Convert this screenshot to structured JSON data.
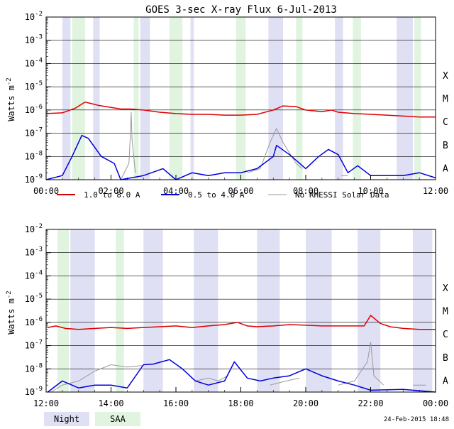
{
  "colors": {
    "night": "#e0e0f4",
    "saa": "#e0f4e0",
    "long_channel": "#dd0000",
    "short_channel": "#0000dd",
    "no_rhessi": "#999999",
    "grid": "#000000"
  },
  "chart_data": [
    {
      "type": "line",
      "title": "GOES 3-sec X-ray Flux    6-Jul-2013",
      "ylabel": "Watts m",
      "ylabel_sup": "-2",
      "yscale": "log",
      "ylim": [
        1e-09,
        0.01
      ],
      "xlim_hours": [
        0,
        12
      ],
      "x_ticks": [
        {
          "t": 0,
          "label": "00:00"
        },
        {
          "t": 2,
          "label": "02:00"
        },
        {
          "t": 4,
          "label": "04:00"
        },
        {
          "t": 6,
          "label": "06:00"
        },
        {
          "t": 8,
          "label": "08:00"
        },
        {
          "t": 10,
          "label": "10:00"
        },
        {
          "t": 12,
          "label": "12:00"
        }
      ],
      "y_ticks": [
        {
          "exp": -2,
          "label": "10"
        },
        {
          "exp": -3,
          "label": "10"
        },
        {
          "exp": -4,
          "label": "10"
        },
        {
          "exp": -5,
          "label": "10"
        },
        {
          "exp": -6,
          "label": "10"
        },
        {
          "exp": -7,
          "label": "10"
        },
        {
          "exp": -8,
          "label": "10"
        },
        {
          "exp": -9,
          "label": "10"
        }
      ],
      "y_tick_sups": [
        "-2",
        "-3",
        "-4",
        "-5",
        "-6",
        "-7",
        "-8",
        "-9"
      ],
      "flare_classes": [
        {
          "exp": -4,
          "label": "X"
        },
        {
          "exp": -5,
          "label": "M"
        },
        {
          "exp": -6,
          "label": "C"
        },
        {
          "exp": -7,
          "label": "B"
        },
        {
          "exp": -8,
          "label": "A"
        }
      ],
      "night": [
        [
          0.5,
          0.75
        ],
        [
          1.45,
          1.65
        ],
        [
          2.9,
          3.2
        ],
        [
          4.45,
          4.55
        ],
        [
          6.85,
          7.3
        ],
        [
          8.9,
          9.15
        ],
        [
          10.8,
          11.3
        ]
      ],
      "saa": [
        [
          0.8,
          1.2
        ],
        [
          2.7,
          2.85
        ],
        [
          3.8,
          4.2
        ],
        [
          5.85,
          6.15
        ],
        [
          7.7,
          7.9
        ],
        [
          9.45,
          9.7
        ],
        [
          11.35,
          11.55
        ]
      ],
      "series": [
        {
          "name": "1.0 to 8.0 A",
          "points": [
            [
              0,
              7e-07
            ],
            [
              0.5,
              7.5e-07
            ],
            [
              0.9,
              1.2e-06
            ],
            [
              1.2,
              2.2e-06
            ],
            [
              1.6,
              1.6e-06
            ],
            [
              2.3,
              1.1e-06
            ],
            [
              2.6,
              1.1e-06
            ],
            [
              3,
              1e-06
            ],
            [
              3.5,
              8e-07
            ],
            [
              4,
              7e-07
            ],
            [
              4.5,
              6.5e-07
            ],
            [
              5,
              6.5e-07
            ],
            [
              5.5,
              6e-07
            ],
            [
              6,
              6e-07
            ],
            [
              6.5,
              6.5e-07
            ],
            [
              7,
              1e-06
            ],
            [
              7.3,
              1.5e-06
            ],
            [
              7.7,
              1.4e-06
            ],
            [
              8,
              1e-06
            ],
            [
              8.5,
              8.5e-07
            ],
            [
              8.8,
              1e-06
            ],
            [
              9,
              8e-07
            ],
            [
              9.5,
              7e-07
            ],
            [
              10,
              6.5e-07
            ],
            [
              10.5,
              6e-07
            ],
            [
              11,
              5.5e-07
            ],
            [
              11.5,
              5e-07
            ],
            [
              12,
              5e-07
            ]
          ]
        },
        {
          "name": "0.5 to 4.0 A",
          "points": [
            [
              0,
              1e-09
            ],
            [
              0.5,
              1.5e-09
            ],
            [
              0.8,
              1e-08
            ],
            [
              1.1,
              8e-08
            ],
            [
              1.3,
              6e-08
            ],
            [
              1.7,
              1e-08
            ],
            [
              2.1,
              5e-09
            ],
            [
              2.3,
              1e-09
            ],
            [
              3,
              1.5e-09
            ],
            [
              3.6,
              3e-09
            ],
            [
              4,
              1e-09
            ],
            [
              4.5,
              2e-09
            ],
            [
              5,
              1.5e-09
            ],
            [
              5.5,
              2e-09
            ],
            [
              6,
              2e-09
            ],
            [
              6.5,
              3e-09
            ],
            [
              7,
              1e-08
            ],
            [
              7.1,
              3e-08
            ],
            [
              7.5,
              1.2e-08
            ],
            [
              8,
              3e-09
            ],
            [
              8.4,
              1e-08
            ],
            [
              8.7,
              2e-08
            ],
            [
              9,
              1.2e-08
            ],
            [
              9.3,
              2e-09
            ],
            [
              9.6,
              4e-09
            ],
            [
              10,
              1.5e-09
            ],
            [
              11,
              1.5e-09
            ],
            [
              11.5,
              2e-09
            ],
            [
              12,
              1.2e-09
            ]
          ]
        }
      ],
      "no_rhessi_segments": [
        [
          [
            2.3,
            1e-09
          ],
          [
            2.55,
            5e-09
          ],
          [
            2.6,
            1e-07
          ],
          [
            2.62,
            8e-07
          ],
          [
            2.65,
            5e-08
          ],
          [
            2.75,
            2e-09
          ]
        ],
        [
          [
            6.2,
            2e-09
          ],
          [
            6.6,
            3e-09
          ],
          [
            6.9,
            4e-08
          ],
          [
            7.1,
            1.6e-07
          ],
          [
            7.3,
            4e-08
          ],
          [
            7.7,
            5e-09
          ],
          [
            7.9,
            3e-09
          ]
        ],
        [
          [
            9.1,
            1.5e-09
          ],
          [
            9.3,
            1.5e-09
          ]
        ]
      ]
    },
    {
      "type": "line",
      "title": "",
      "ylabel": "Watts m",
      "ylabel_sup": "-2",
      "yscale": "log",
      "ylim": [
        1e-09,
        0.01
      ],
      "xlim_hours": [
        12,
        24
      ],
      "x_ticks": [
        {
          "t": 12,
          "label": "12:00"
        },
        {
          "t": 14,
          "label": "14:00"
        },
        {
          "t": 16,
          "label": "16:00"
        },
        {
          "t": 18,
          "label": "18:00"
        },
        {
          "t": 20,
          "label": "20:00"
        },
        {
          "t": 22,
          "label": "22:00"
        },
        {
          "t": 24,
          "label": "00:00"
        }
      ],
      "y_ticks": [
        {
          "exp": -2,
          "label": "10"
        },
        {
          "exp": -3,
          "label": "10"
        },
        {
          "exp": -4,
          "label": "10"
        },
        {
          "exp": -5,
          "label": "10"
        },
        {
          "exp": -6,
          "label": "10"
        },
        {
          "exp": -7,
          "label": "10"
        },
        {
          "exp": -8,
          "label": "10"
        },
        {
          "exp": -9,
          "label": "10"
        }
      ],
      "y_tick_sups": [
        "-2",
        "-3",
        "-4",
        "-5",
        "-6",
        "-7",
        "-8",
        "-9"
      ],
      "flare_classes": [
        {
          "exp": -4,
          "label": "X"
        },
        {
          "exp": -5,
          "label": "M"
        },
        {
          "exp": -6,
          "label": "C"
        },
        {
          "exp": -7,
          "label": "B"
        },
        {
          "exp": -8,
          "label": "A"
        }
      ],
      "night": [
        [
          12.75,
          13.5
        ],
        [
          15.0,
          15.6
        ],
        [
          16.55,
          17.3
        ],
        [
          18.5,
          19.2
        ],
        [
          20.0,
          20.8
        ],
        [
          21.6,
          22.3
        ],
        [
          23.3,
          23.9
        ]
      ],
      "saa": [
        [
          12.35,
          12.7
        ],
        [
          14.15,
          14.4
        ]
      ],
      "series": [
        {
          "name": "1.0 to 8.0 A",
          "points": [
            [
              12.05,
              6e-07
            ],
            [
              12.3,
              7e-07
            ],
            [
              12.6,
              5.5e-07
            ],
            [
              13,
              5e-07
            ],
            [
              13.5,
              5.5e-07
            ],
            [
              14,
              6e-07
            ],
            [
              14.5,
              5.5e-07
            ],
            [
              15,
              6e-07
            ],
            [
              15.5,
              6.5e-07
            ],
            [
              16,
              7e-07
            ],
            [
              16.5,
              6e-07
            ],
            [
              17,
              7e-07
            ],
            [
              17.5,
              8e-07
            ],
            [
              17.9,
              1e-06
            ],
            [
              18.2,
              7e-07
            ],
            [
              18.5,
              6.5e-07
            ],
            [
              19,
              7e-07
            ],
            [
              19.5,
              8e-07
            ],
            [
              20,
              7.5e-07
            ],
            [
              20.5,
              7e-07
            ],
            [
              21,
              7e-07
            ],
            [
              21.5,
              7e-07
            ],
            [
              21.8,
              7e-07
            ],
            [
              22,
              2e-06
            ],
            [
              22.3,
              9e-07
            ],
            [
              22.6,
              6.5e-07
            ],
            [
              23,
              5.5e-07
            ],
            [
              23.5,
              5e-07
            ],
            [
              24,
              5e-07
            ]
          ]
        },
        {
          "name": "0.5 to 4.0 A",
          "points": [
            [
              12.05,
              1e-09
            ],
            [
              12.5,
              3e-09
            ],
            [
              13,
              1.5e-09
            ],
            [
              13.5,
              2e-09
            ],
            [
              14,
              2e-09
            ],
            [
              14.5,
              1.5e-09
            ],
            [
              15,
              1.5e-08
            ],
            [
              15.3,
              1.6e-08
            ],
            [
              15.8,
              2.5e-08
            ],
            [
              16.2,
              1e-08
            ],
            [
              16.6,
              3e-09
            ],
            [
              17,
              2e-09
            ],
            [
              17.5,
              3e-09
            ],
            [
              17.8,
              2e-08
            ],
            [
              18.2,
              4e-09
            ],
            [
              18.6,
              3e-09
            ],
            [
              19,
              4e-09
            ],
            [
              19.5,
              5e-09
            ],
            [
              20,
              1e-08
            ],
            [
              20.5,
              5e-09
            ],
            [
              21,
              3e-09
            ],
            [
              21.5,
              2e-09
            ],
            [
              22,
              1.2e-09
            ],
            [
              23,
              1.3e-09
            ],
            [
              24,
              1e-09
            ]
          ]
        }
      ],
      "no_rhessi_segments": [
        [
          [
            12.15,
            1e-09
          ],
          [
            12.5,
            2e-09
          ],
          [
            13,
            3e-09
          ],
          [
            13.5,
            8e-09
          ],
          [
            14,
            1.5e-08
          ],
          [
            14.5,
            1.2e-08
          ],
          [
            15,
            1.4e-08
          ]
        ],
        [
          [
            16.6,
            3e-09
          ],
          [
            17,
            4e-09
          ],
          [
            17.3,
            3e-09
          ],
          [
            17.6,
            5e-09
          ]
        ],
        [
          [
            18.9,
            2e-09
          ],
          [
            19.4,
            3e-09
          ],
          [
            19.8,
            4e-09
          ]
        ],
        [
          [
            21,
            2e-09
          ],
          [
            21.5,
            3e-09
          ],
          [
            21.9,
            2e-08
          ],
          [
            22,
            1.4e-07
          ],
          [
            22.1,
            5e-09
          ],
          [
            22.4,
            2e-09
          ]
        ],
        [
          [
            23.3,
            2e-09
          ],
          [
            23.7,
            2e-09
          ]
        ]
      ]
    }
  ],
  "legend": {
    "items": [
      {
        "label": "1.0 to 8.0 A"
      },
      {
        "label": "0.5 to 4.0 A"
      },
      {
        "label": "No RHESSI Solar Data"
      }
    ]
  },
  "footer": {
    "night_label": "Night",
    "saa_label": "SAA",
    "timestamp": "24-Feb-2015 18:48"
  }
}
